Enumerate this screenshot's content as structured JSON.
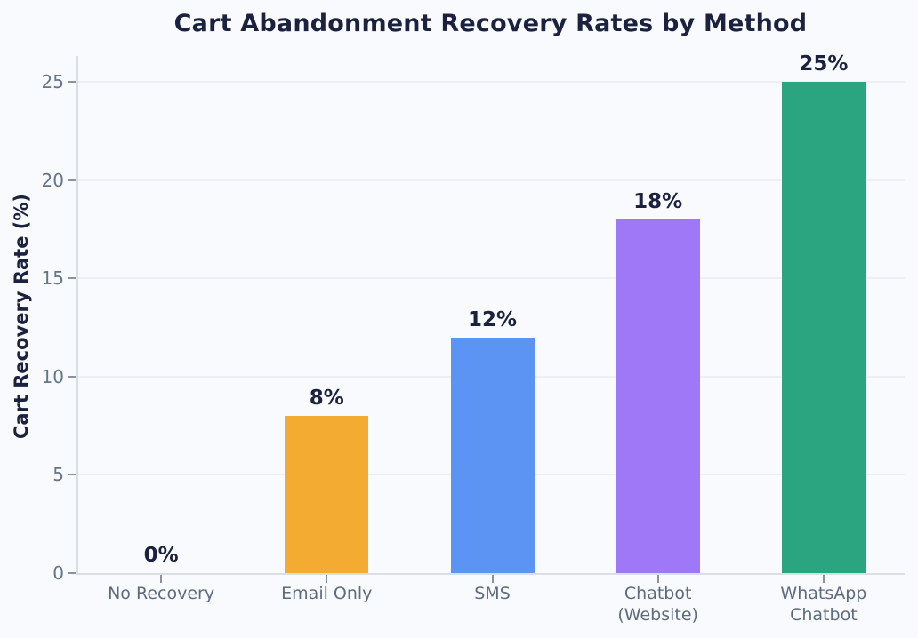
{
  "chart_data": {
    "type": "bar",
    "title": "Cart Abandonment Recovery Rates by Method",
    "xlabel": "",
    "ylabel": "Cart Recovery Rate (%)",
    "categories": [
      "No Recovery",
      "Email Only",
      "SMS",
      "Chatbot\n(Website)",
      "WhatsApp\nChatbot"
    ],
    "values": [
      0,
      8,
      12,
      18,
      25
    ],
    "bar_labels": [
      "0%",
      "8%",
      "12%",
      "18%",
      "25%"
    ],
    "bar_colors": [
      null,
      "#f4ab32",
      "#5b94f2",
      "#9e78f6",
      "#2ba57f"
    ],
    "yticks": [
      0,
      5,
      10,
      15,
      20,
      25
    ],
    "ytick_labels": [
      "0",
      "5",
      "10",
      "15",
      "20",
      "25"
    ],
    "ylim": [
      0,
      26.4
    ],
    "grid": "horizontal",
    "legend": "none"
  },
  "colors": {
    "background": "#f8fafd",
    "grid": "#edeff4",
    "spine": "#dadee5",
    "tick": "#8a92a3",
    "tick_label": "#64748b",
    "category_label": "#5d6b82",
    "title": "#1b2240",
    "value_label": "#1b2240"
  }
}
